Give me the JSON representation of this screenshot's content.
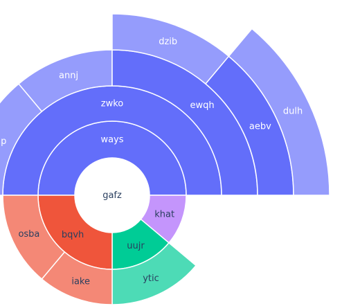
{
  "chart_data": {
    "type": "sunburst",
    "center": {
      "label": "gafz",
      "color": "#ffffff",
      "label_color": "#2a3f5f",
      "children": [
        {
          "label": "ways",
          "color": "#636efa",
          "label_color": "#ffffff",
          "value": 90,
          "children": [
            {
              "label": "zwko",
              "color": "#636efa",
              "label_color": "#ffffff",
              "value": 90,
              "children": [
                {
                  "label": "lunp",
                  "color": "#959cfc",
                  "label_color": "#ffffff",
                  "value": 25
                },
                {
                  "label": "annj",
                  "color": "#959cfc",
                  "label_color": "#ffffff",
                  "value": 20
                },
                {
                  "label": "ewqh",
                  "color": "#636efa",
                  "label_color": "#ffffff",
                  "value": 45,
                  "children": [
                    {
                      "label": "dzib",
                      "color": "#959cfc",
                      "label_color": "#ffffff",
                      "value": 20
                    },
                    {
                      "label": "aebv",
                      "color": "#636efa",
                      "label_color": "#ffffff",
                      "value": 25,
                      "children": [
                        {
                          "label": "dulh",
                          "color": "#959cfc",
                          "label_color": "#ffffff",
                          "value": 25
                        }
                      ]
                    }
                  ]
                }
              ]
            }
          ]
        },
        {
          "label": "khat",
          "color": "#c495fc",
          "label_color": "#2a3f5f",
          "value": 20
        },
        {
          "label": "uujr",
          "color": "#00cc96",
          "label_color": "#2a3f5f",
          "value": 25,
          "children": [
            {
              "label": "ytic",
              "color": "#4ddbb6",
              "label_color": "#2a3f5f",
              "value": 25
            }
          ]
        },
        {
          "label": "bqvh",
          "color": "#ef553b",
          "label_color": "#2a3f5f",
          "value": 45,
          "children": [
            {
              "label": "iake",
              "color": "#f48876",
              "label_color": "#2a3f5f",
              "value": 20
            },
            {
              "label": "osba",
              "color": "#f48876",
              "label_color": "#2a3f5f",
              "value": 25
            }
          ]
        }
      ]
    }
  }
}
